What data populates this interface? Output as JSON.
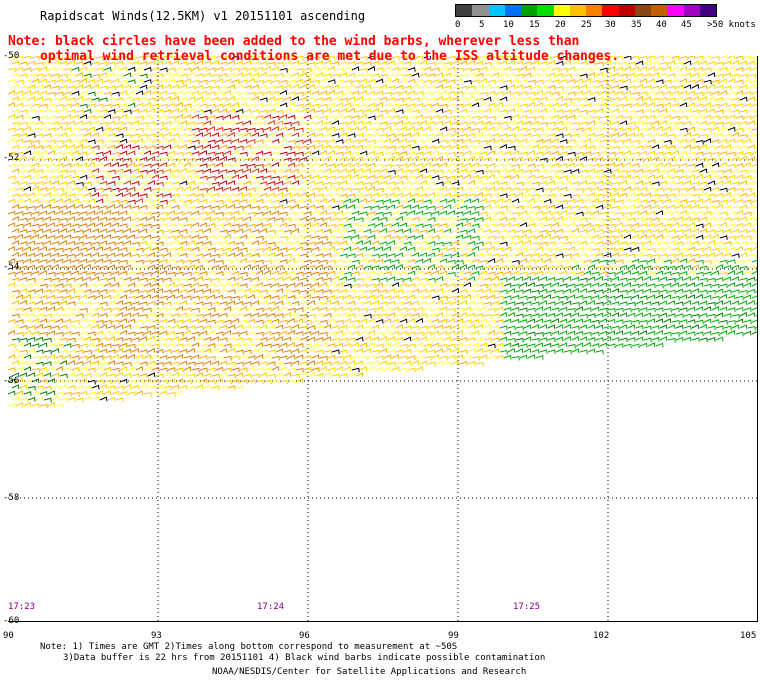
{
  "title": "Rapidscat Winds(12.5KM) v1 20151101 ascending",
  "note_line1": "Note: black circles have been added to the wind barbs, wherever less than",
  "note_line2": "optimal wind retrieval conditions are met due to the ISS altitude changes.",
  "legend": {
    "labels": [
      "0",
      "5",
      "10",
      "15",
      "20",
      "25",
      "30",
      "35",
      "40",
      "45",
      ">50 knots"
    ],
    "colors": [
      "#404040",
      "#909090",
      "#00c8ff",
      "#0070ff",
      "#00a000",
      "#00e000",
      "#ffff00",
      "#ffc000",
      "#ff8000",
      "#ff0000",
      "#c00000",
      "#8b4513",
      "#c06000",
      "#ff00ff",
      "#a000c0",
      "#400080"
    ]
  },
  "map": {
    "lon_labels": [
      "90",
      "93",
      "96",
      "99",
      "102",
      "105"
    ],
    "lat_labels": [
      "-50",
      "-52",
      "-54",
      "-56",
      "-58",
      "-60"
    ],
    "times": [
      "17:23",
      "17:24",
      "17:25"
    ],
    "lon_range": [
      90,
      105
    ],
    "lat_range": [
      -60,
      -50
    ],
    "coverage_bottom_lat": -56.5
  },
  "footer": {
    "line1": "Note: 1) Times are GMT 2)Times along bottom correspond to measurement at ~50S",
    "line2": "3)Data buffer is 22 hrs from 20151101 4) Black wind barbs indicate possible contamination",
    "line3": "NOAA/NESDIS/Center for Satellite Applications and Research"
  }
}
